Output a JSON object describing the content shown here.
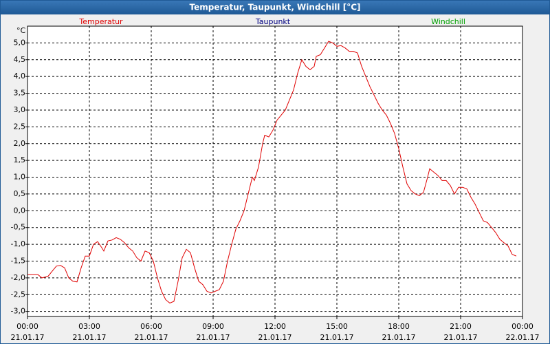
{
  "chart_data": {
    "type": "line",
    "title": "Temperatur, Taupunkt, Windchill [°C]",
    "y_unit": "°C",
    "x": [
      0,
      0.5,
      0.7,
      1.0,
      1.2,
      1.4,
      1.6,
      1.8,
      2.0,
      2.2,
      2.4,
      2.6,
      2.8,
      3.0,
      3.2,
      3.4,
      3.6,
      3.7,
      3.9,
      4.1,
      4.3,
      4.5,
      4.7,
      4.9,
      5.1,
      5.3,
      5.5,
      5.7,
      5.9,
      6.1,
      6.3,
      6.5,
      6.7,
      6.9,
      7.1,
      7.3,
      7.5,
      7.7,
      7.9,
      8.1,
      8.3,
      8.5,
      8.7,
      8.9,
      9.1,
      9.3,
      9.5,
      9.7,
      9.9,
      10.1,
      10.3,
      10.5,
      10.7,
      10.9,
      11.0,
      11.2,
      11.4,
      11.5,
      11.7,
      11.9,
      12.1,
      12.3,
      12.5,
      12.7,
      12.9,
      13.1,
      13.3,
      13.5,
      13.7,
      13.9,
      14.0,
      14.2,
      14.4,
      14.6,
      14.8,
      15.0,
      15.2,
      15.4,
      15.6,
      15.8,
      16.0,
      16.2,
      16.4,
      16.6,
      16.8,
      17.0,
      17.2,
      17.4,
      17.6,
      17.8,
      18.0,
      18.2,
      18.4,
      18.6,
      18.8,
      19.0,
      19.2,
      19.4,
      19.5,
      19.7,
      19.9,
      20.1,
      20.3,
      20.5,
      20.7,
      20.9,
      21.1,
      21.3,
      21.5,
      21.7,
      21.9,
      22.1,
      22.3,
      22.5,
      22.7,
      22.9,
      23.1,
      23.3,
      23.5,
      23.7
    ],
    "series": [
      {
        "name": "Temperatur",
        "color": "#e00000",
        "values": [
          -1.9,
          -1.9,
          -2.0,
          -1.95,
          -1.8,
          -1.65,
          -1.63,
          -1.7,
          -2.0,
          -2.1,
          -2.12,
          -1.7,
          -1.35,
          -1.35,
          -1.0,
          -0.92,
          -1.1,
          -1.2,
          -0.9,
          -0.87,
          -0.8,
          -0.85,
          -0.95,
          -1.1,
          -1.2,
          -1.4,
          -1.5,
          -1.2,
          -1.25,
          -1.5,
          -2.0,
          -2.4,
          -2.65,
          -2.75,
          -2.7,
          -2.1,
          -1.4,
          -1.15,
          -1.25,
          -1.7,
          -2.1,
          -2.2,
          -2.4,
          -2.45,
          -2.4,
          -2.35,
          -2.1,
          -1.5,
          -1.0,
          -0.55,
          -0.3,
          0.0,
          0.5,
          1.0,
          0.9,
          1.3,
          2.0,
          2.25,
          2.2,
          2.4,
          2.7,
          2.85,
          3.0,
          3.3,
          3.6,
          4.1,
          4.5,
          4.3,
          4.2,
          4.3,
          4.6,
          4.65,
          4.85,
          5.05,
          5.0,
          4.9,
          4.92,
          4.85,
          4.75,
          4.75,
          4.7,
          4.3,
          4.0,
          3.7,
          3.45,
          3.2,
          3.0,
          2.85,
          2.6,
          2.3,
          1.85,
          1.3,
          0.8,
          0.6,
          0.5,
          0.45,
          0.55,
          1.0,
          1.25,
          1.15,
          1.05,
          0.9,
          0.9,
          0.75,
          0.5,
          0.7,
          0.7,
          0.65,
          0.4,
          0.2,
          -0.05,
          -0.3,
          -0.35,
          -0.5,
          -0.65,
          -0.85,
          -0.95,
          -1.05,
          -1.3,
          -1.35
        ]
      },
      {
        "name": "Taupunkt",
        "color": "#000080",
        "values": [
          null,
          null,
          null,
          null,
          null,
          null,
          null,
          null,
          null,
          null,
          null,
          null,
          null,
          null,
          null,
          null,
          null,
          null,
          null,
          null,
          null,
          null,
          null,
          null,
          null,
          null,
          null,
          null,
          null,
          null,
          null,
          null,
          null,
          null,
          null,
          null,
          null,
          null,
          null,
          null,
          null,
          null,
          null,
          null,
          null,
          null,
          null,
          null,
          null,
          null,
          null,
          null,
          null,
          null,
          null,
          null,
          null,
          null,
          null,
          null,
          null,
          null,
          null,
          null,
          null,
          null,
          null,
          null,
          null,
          null,
          null,
          null,
          null,
          null,
          null,
          null,
          null,
          null,
          null,
          null,
          null,
          null,
          null,
          null,
          null,
          null,
          null,
          null,
          null,
          null,
          null,
          null,
          null,
          null,
          null,
          null,
          null,
          null,
          null,
          null,
          null,
          null,
          null,
          null,
          null,
          null,
          null,
          null,
          null,
          null,
          null,
          null,
          null,
          null,
          null,
          null,
          null,
          null,
          null,
          null
        ]
      },
      {
        "name": "Windchill",
        "color": "#00a000",
        "values": [
          null,
          null,
          null,
          null,
          null,
          null,
          null,
          null,
          null,
          null,
          null,
          null,
          null,
          null,
          null,
          null,
          null,
          null,
          null,
          null,
          null,
          null,
          null,
          null,
          null,
          null,
          null,
          null,
          null,
          null,
          null,
          null,
          null,
          null,
          null,
          null,
          null,
          null,
          null,
          null,
          null,
          null,
          null,
          null,
          null,
          null,
          null,
          null,
          null,
          null,
          null,
          null,
          null,
          null,
          null,
          null,
          null,
          null,
          null,
          null,
          null,
          null,
          null,
          null,
          null,
          null,
          null,
          null,
          null,
          null,
          null,
          null,
          null,
          null,
          null,
          null,
          null,
          null,
          null,
          null,
          null,
          null,
          null,
          null,
          null,
          null,
          null,
          null,
          null,
          null,
          null,
          null,
          null,
          null,
          null,
          null,
          null,
          null,
          null,
          null,
          null,
          null,
          null,
          null,
          null,
          null,
          null,
          null,
          null,
          null,
          null,
          null,
          null,
          null,
          null,
          null,
          null,
          null,
          null,
          null
        ]
      }
    ],
    "xlim": [
      0,
      24
    ],
    "xticks": [
      {
        "value": 0,
        "label": "00:00"
      },
      {
        "value": 3,
        "label": "03:00"
      },
      {
        "value": 6,
        "label": "06:00"
      },
      {
        "value": 9,
        "label": "09:00"
      },
      {
        "value": 12,
        "label": "12:00"
      },
      {
        "value": 15,
        "label": "15:00"
      },
      {
        "value": 18,
        "label": "18:00"
      },
      {
        "value": 21,
        "label": "21:00"
      },
      {
        "value": 24,
        "label": "00:00"
      }
    ],
    "xtick_dates": [
      "21.01.17",
      "21.01.17",
      "21.01.17",
      "21.01.17",
      "21.01.17",
      "21.01.17",
      "21.01.17",
      "21.01.17",
      "22.01.17"
    ],
    "ylim": [
      -3.15,
      5.5
    ],
    "yticks": [
      {
        "value": -3,
        "label": "-3,0"
      },
      {
        "value": -2.5,
        "label": "-2,5"
      },
      {
        "value": -2,
        "label": "-2,0"
      },
      {
        "value": -1.5,
        "label": "-1,5"
      },
      {
        "value": -1,
        "label": "-1,0"
      },
      {
        "value": -0.5,
        "label": "-0,5"
      },
      {
        "value": 0,
        "label": "0,0"
      },
      {
        "value": 0.5,
        "label": "0,5"
      },
      {
        "value": 1,
        "label": "1,0"
      },
      {
        "value": 1.5,
        "label": "1,5"
      },
      {
        "value": 2,
        "label": "2,0"
      },
      {
        "value": 2.5,
        "label": "2,5"
      },
      {
        "value": 3,
        "label": "3,0"
      },
      {
        "value": 3.5,
        "label": "3,5"
      },
      {
        "value": 4,
        "label": "4,0"
      },
      {
        "value": 4.5,
        "label": "4,5"
      },
      {
        "value": 5,
        "label": "5,0"
      }
    ],
    "grid": true
  }
}
